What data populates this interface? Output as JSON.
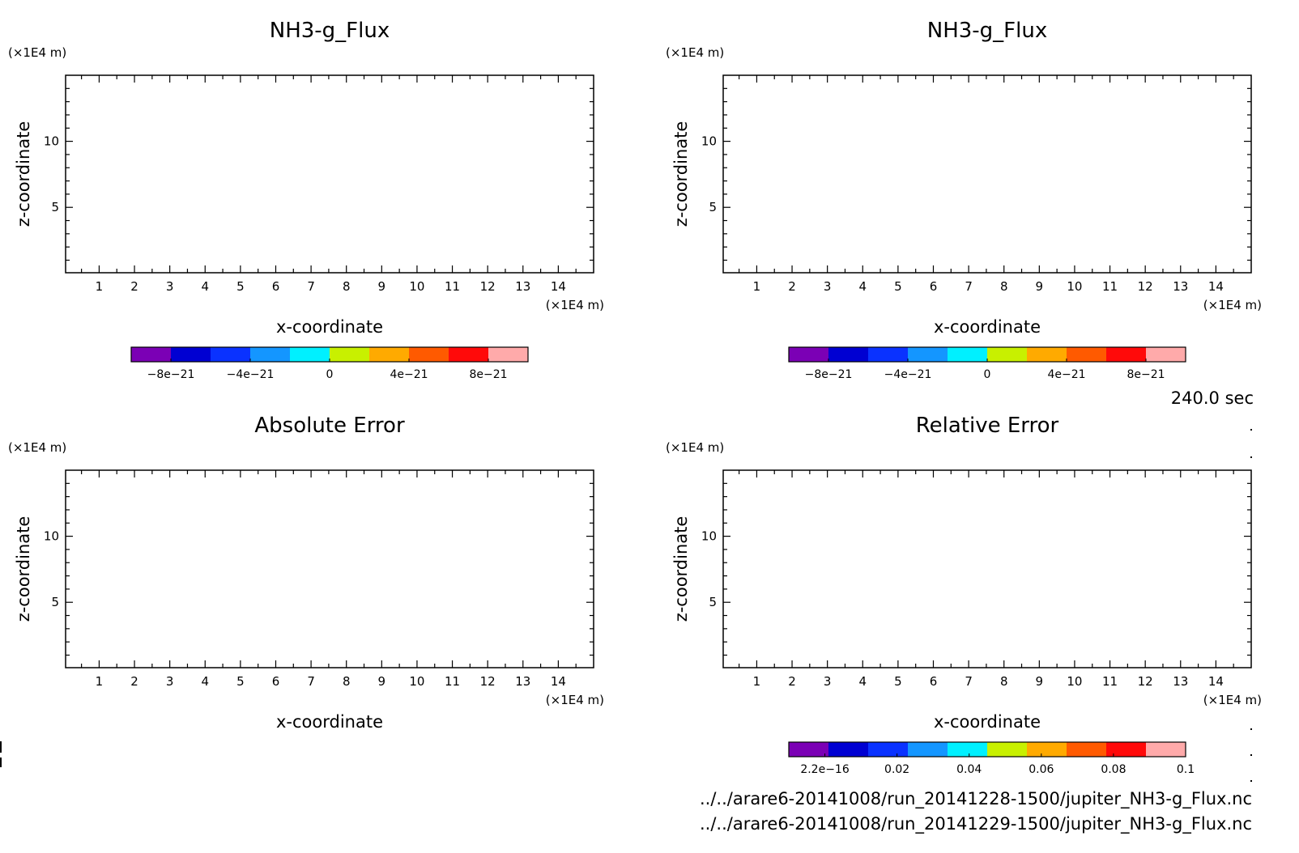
{
  "time_label": "240.0 sec",
  "files": [
    "../../arare6-20141008/run_20141228-1500/jupiter_NH3-g_Flux.nc",
    "../../arare6-20141008/run_20141229-1500/jupiter_NH3-g_Flux.nc"
  ],
  "colors": {
    "palette": [
      "#7b00b5",
      "#0000d2",
      "#0a32ff",
      "#1496ff",
      "#00f0ff",
      "#c8f000",
      "#ffaa00",
      "#ff5a00",
      "#ff0a0a",
      "#ffaaaa"
    ],
    "frame": "#000000",
    "background": "#ffffff"
  },
  "chart_data": [
    {
      "type": "heatmap",
      "title": "NH3-g_Flux",
      "xlabel": "x-coordinate",
      "ylabel": "z-coordinate",
      "x_unit": "(×1E4 m)",
      "y_unit": "(×1E4 m)",
      "xlim": [
        0.05,
        15.0
      ],
      "ylim": [
        0.05,
        15.0
      ],
      "x_ticks": [
        1,
        2,
        3,
        4,
        5,
        6,
        7,
        8,
        9,
        10,
        11,
        12,
        13,
        14
      ],
      "y_ticks": [
        5,
        10
      ],
      "values": [],
      "colorbar": {
        "range": [
          -1e-20,
          1e-20
        ],
        "labels": [
          "−8e−21",
          "−4e−21",
          "0",
          "4e−21",
          "8e−21"
        ],
        "label_values": [
          -8e-21,
          -4e-21,
          0,
          4e-21,
          8e-21
        ]
      }
    },
    {
      "type": "heatmap",
      "title": "NH3-g_Flux",
      "xlabel": "x-coordinate",
      "ylabel": "z-coordinate",
      "x_unit": "(×1E4 m)",
      "y_unit": "(×1E4 m)",
      "xlim": [
        0.05,
        15.0
      ],
      "ylim": [
        0.05,
        15.0
      ],
      "x_ticks": [
        1,
        2,
        3,
        4,
        5,
        6,
        7,
        8,
        9,
        10,
        11,
        12,
        13,
        14
      ],
      "y_ticks": [
        5,
        10
      ],
      "values": [],
      "colorbar": {
        "range": [
          -1e-20,
          1e-20
        ],
        "labels": [
          "−8e−21",
          "−4e−21",
          "0",
          "4e−21",
          "8e−21"
        ],
        "label_values": [
          -8e-21,
          -4e-21,
          0,
          4e-21,
          8e-21
        ]
      }
    },
    {
      "type": "heatmap",
      "title": "Absolute Error",
      "xlabel": "x-coordinate",
      "ylabel": "z-coordinate",
      "x_unit": "(×1E4 m)",
      "y_unit": "(×1E4 m)",
      "xlim": [
        0.05,
        15.0
      ],
      "ylim": [
        0.05,
        15.0
      ],
      "x_ticks": [
        1,
        2,
        3,
        4,
        5,
        6,
        7,
        8,
        9,
        10,
        11,
        12,
        13,
        14
      ],
      "y_ticks": [
        5,
        10
      ],
      "values": [],
      "colorbar": null
    },
    {
      "type": "heatmap",
      "title": "Relative Error",
      "xlabel": "x-coordinate",
      "ylabel": "z-coordinate",
      "x_unit": "(×1E4 m)",
      "y_unit": "(×1E4 m)",
      "xlim": [
        0.05,
        15.0
      ],
      "ylim": [
        0.05,
        15.0
      ],
      "x_ticks": [
        1,
        2,
        3,
        4,
        5,
        6,
        7,
        8,
        9,
        10,
        11,
        12,
        13,
        14
      ],
      "y_ticks": [
        5,
        10
      ],
      "values": [],
      "colorbar": {
        "range": [
          -0.01,
          0.1
        ],
        "labels": [
          "2.2e−16",
          "0.02",
          "0.04",
          "0.06",
          "0.08",
          "0.1"
        ],
        "label_values": [
          0,
          0.02,
          0.04,
          0.06,
          0.08,
          0.1
        ]
      }
    }
  ]
}
